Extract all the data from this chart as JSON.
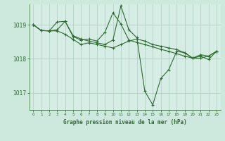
{
  "title": "Graphe pression niveau de la mer (hPa)",
  "background_color": "#cde8dc",
  "plot_bg_color": "#d6ede5",
  "grid_color": "#aaccbb",
  "line_color": "#2d6b2d",
  "x_ticks": [
    0,
    1,
    2,
    3,
    4,
    5,
    6,
    7,
    8,
    9,
    10,
    11,
    12,
    13,
    14,
    15,
    16,
    17,
    18,
    19,
    20,
    21,
    22,
    23
  ],
  "xlim": [
    -0.5,
    23.5
  ],
  "ylim": [
    1016.5,
    1019.6
  ],
  "yticks": [
    1017,
    1018,
    1019
  ],
  "series1": [
    1019.0,
    1018.83,
    1018.82,
    1019.08,
    1019.1,
    1018.65,
    1018.55,
    1018.58,
    1018.52,
    1018.78,
    1019.35,
    1019.02,
    1018.55,
    1018.48,
    1018.42,
    1018.35,
    1018.28,
    1018.22,
    1018.15,
    1018.08,
    1018.02,
    1018.12,
    1018.08,
    1018.22
  ],
  "series2": [
    1019.0,
    1018.83,
    1018.82,
    1018.85,
    1019.1,
    1018.68,
    1018.58,
    1018.52,
    1018.47,
    1018.42,
    1018.55,
    1019.55,
    1018.85,
    1018.62,
    1017.05,
    1016.65,
    1017.42,
    1017.68,
    1018.22,
    1018.18,
    1018.02,
    1018.08,
    1017.98,
    1018.22
  ],
  "series3": [
    1019.0,
    1018.83,
    1018.82,
    1018.82,
    1018.72,
    1018.57,
    1018.42,
    1018.47,
    1018.42,
    1018.37,
    1018.32,
    1018.42,
    1018.52,
    1018.58,
    1018.52,
    1018.42,
    1018.37,
    1018.32,
    1018.27,
    1018.18,
    1018.02,
    1018.02,
    1018.08,
    1018.22
  ]
}
